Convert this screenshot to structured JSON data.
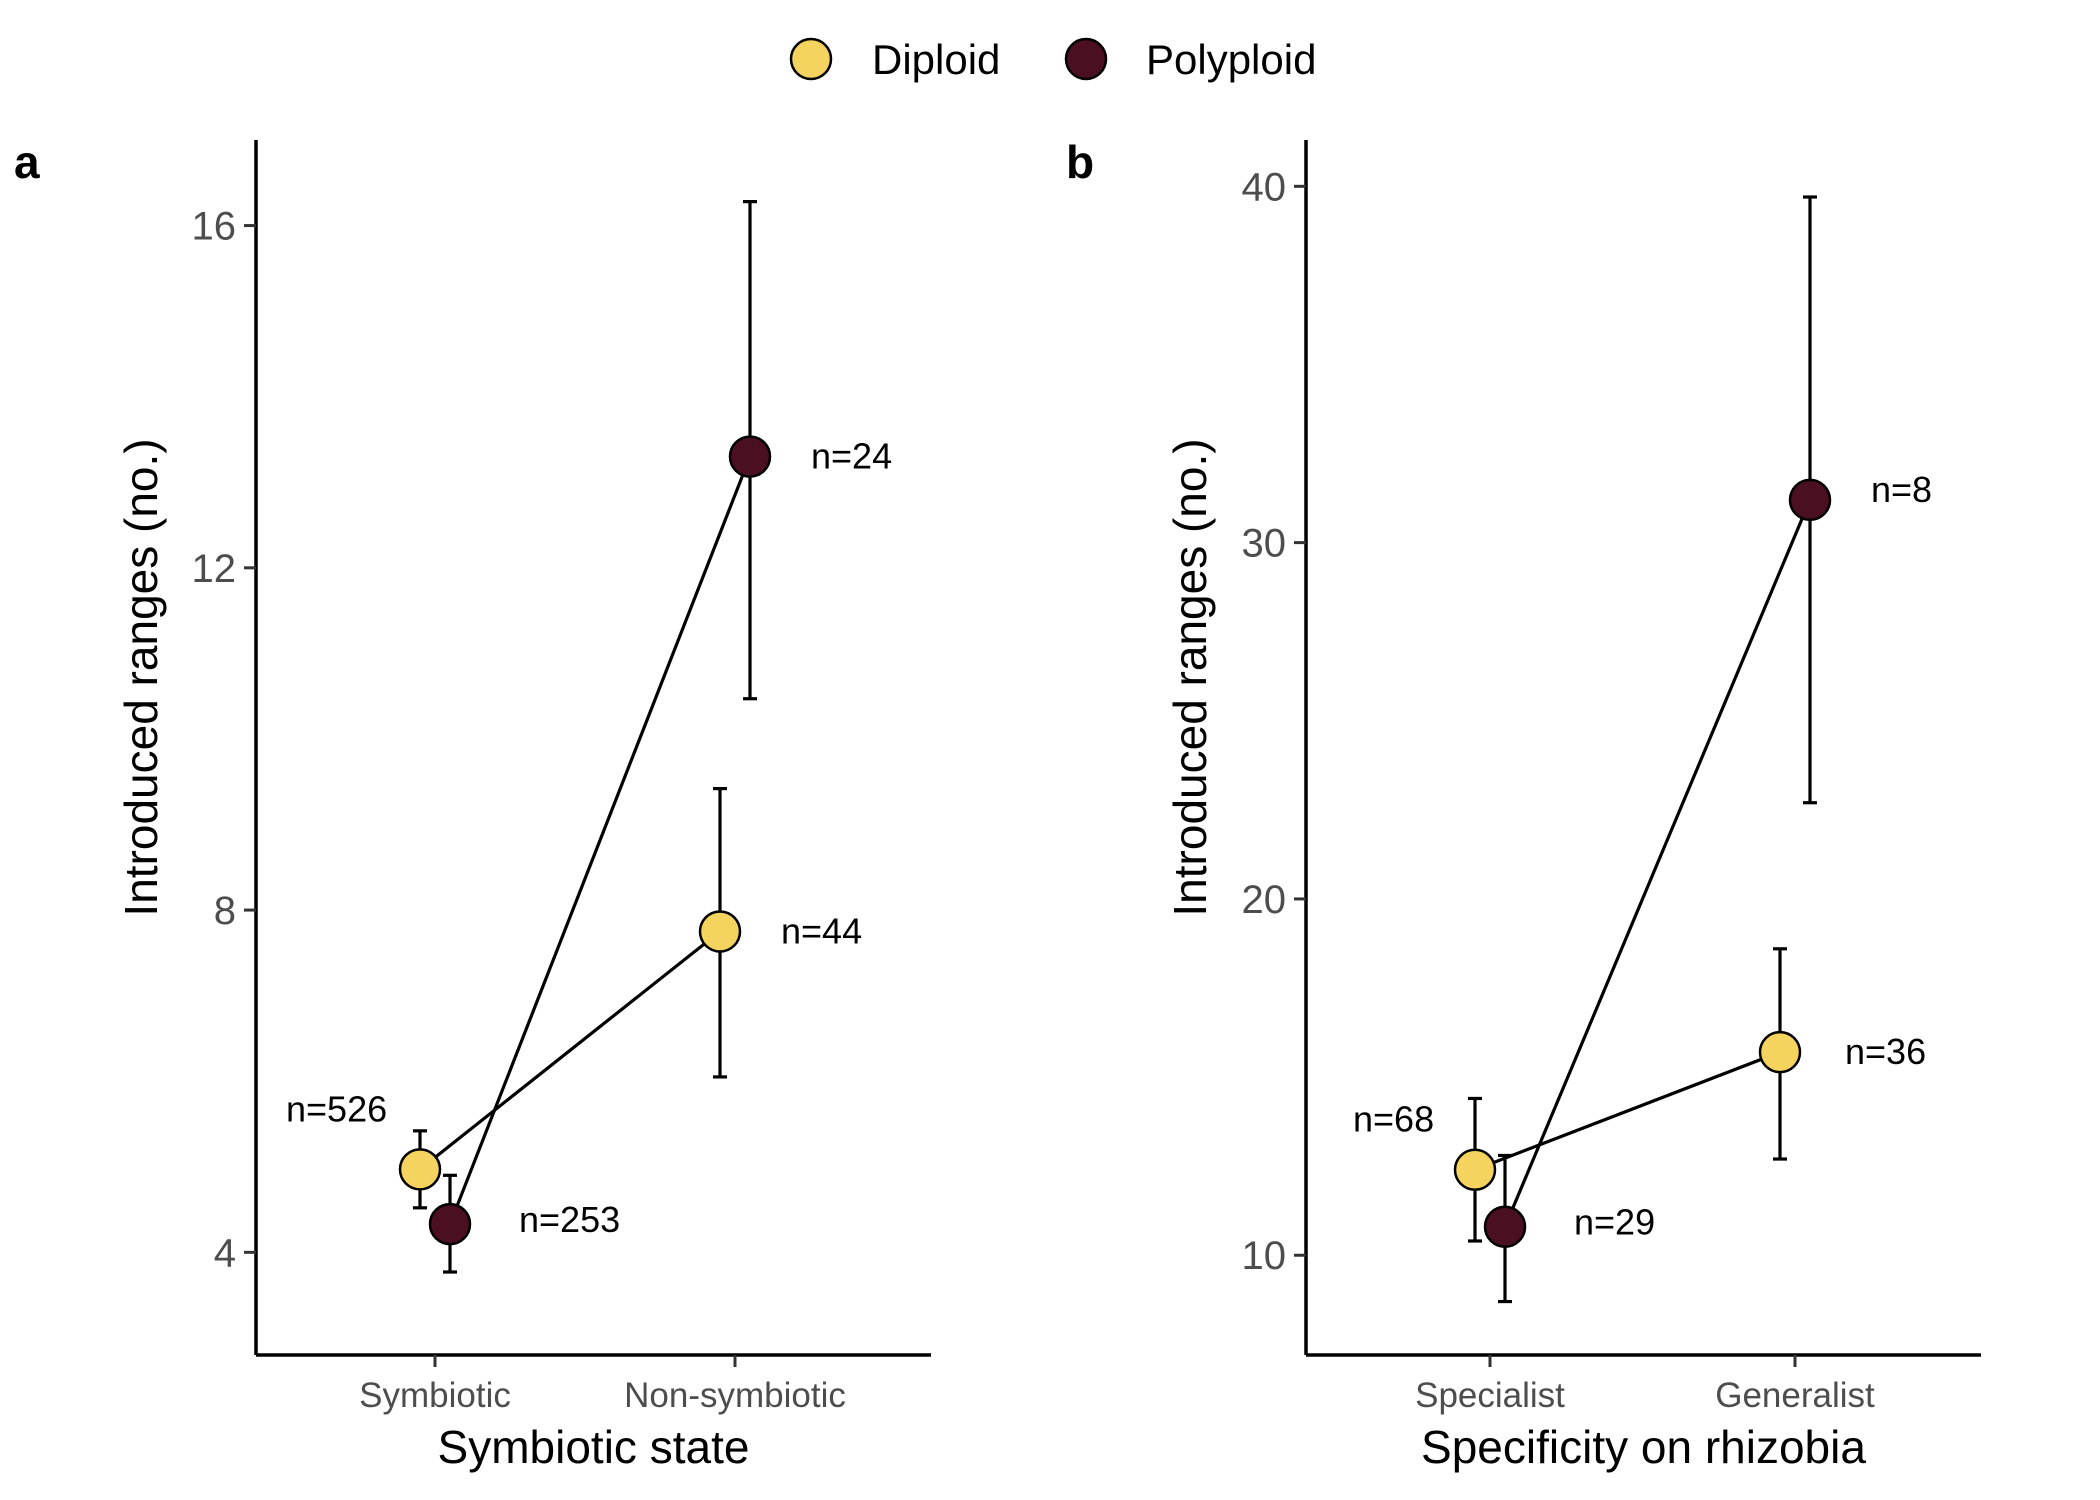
{
  "legend": {
    "entries": [
      {
        "name": "Diploid",
        "color": "#F5D35F"
      },
      {
        "name": "Polyploid",
        "color": "#4A1021"
      }
    ]
  },
  "chart_data": [
    {
      "type": "line",
      "panel_tag": "a",
      "xlabel": "Symbiotic state",
      "ylabel": "Introduced ranges (no.)",
      "categories": [
        "Symbiotic",
        "Non-symbiotic"
      ],
      "ylim": [
        2.8,
        17.0
      ],
      "yticks": [
        4,
        8,
        12,
        16
      ],
      "series": [
        {
          "name": "Diploid",
          "color": "#F5D35F",
          "values": [
            4.97,
            7.75
          ],
          "err_low": [
            4.52,
            6.05
          ],
          "err_high": [
            5.42,
            9.42
          ],
          "n_labels": [
            "n=526",
            "n=44"
          ]
        },
        {
          "name": "Polyploid",
          "color": "#4A1021",
          "values": [
            4.33,
            13.3
          ],
          "err_low": [
            3.77,
            10.47
          ],
          "err_high": [
            4.9,
            16.28
          ],
          "n_labels": [
            "n=253",
            "n=24"
          ]
        }
      ]
    },
    {
      "type": "line",
      "panel_tag": "b",
      "xlabel": "Specificity on rhizobia",
      "ylabel": "Introduced ranges (no.)",
      "categories": [
        "Specialist",
        "Generalist"
      ],
      "ylim": [
        7.2,
        41.3
      ],
      "yticks": [
        10,
        20,
        30,
        40
      ],
      "series": [
        {
          "name": "Diploid",
          "color": "#F5D35F",
          "values": [
            12.4,
            15.7
          ],
          "err_low": [
            10.4,
            12.7
          ],
          "err_high": [
            14.4,
            18.6
          ],
          "n_labels": [
            "n=68",
            "n=36"
          ]
        },
        {
          "name": "Polyploid",
          "color": "#4A1021",
          "values": [
            10.8,
            31.2
          ],
          "err_low": [
            8.7,
            22.7
          ],
          "err_high": [
            12.8,
            39.7
          ],
          "n_labels": [
            "n=29",
            "n=8"
          ]
        }
      ]
    }
  ]
}
